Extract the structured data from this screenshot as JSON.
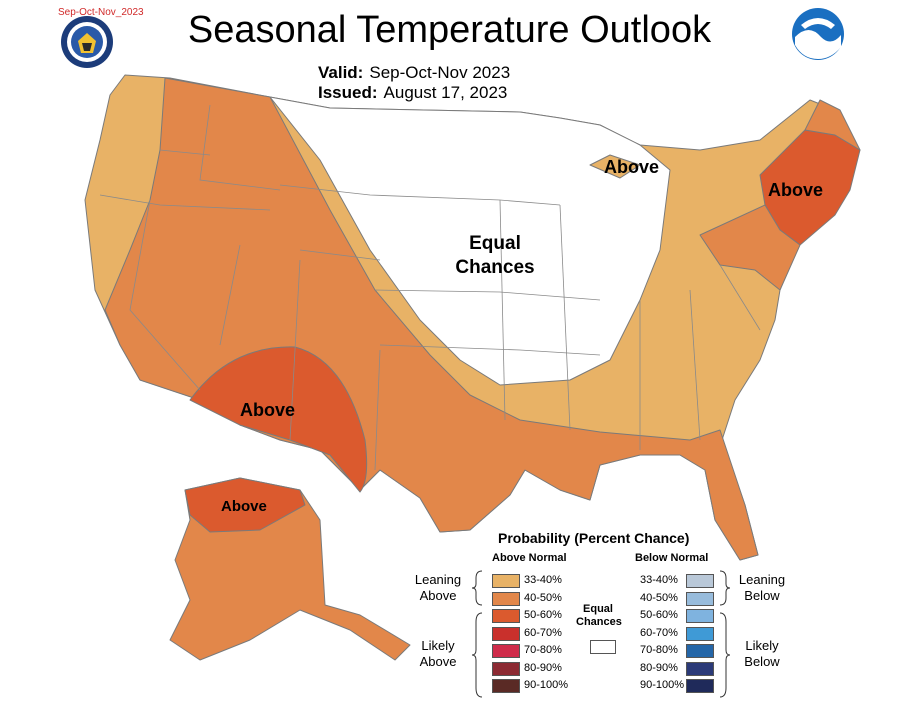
{
  "corner_tag": "Sep-Oct-Nov_2023",
  "title": "Seasonal Temperature Outlook",
  "valid_label": "Valid:",
  "valid_value": "Sep-Oct-Nov 2023",
  "issued_label": "Issued:",
  "issued_value": "August 17, 2023",
  "map_labels": {
    "equal_chances_1": "Equal",
    "equal_chances_2": "Chances",
    "south": "Above",
    "northeast": "Above",
    "great_lakes": "Above",
    "alaska": "Above"
  },
  "colors": {
    "above_33_40": "#e8b266",
    "above_40_50": "#e2874a",
    "above_50_60": "#db5a2e",
    "above_60_70": "#c9302c",
    "above_70_80": "#cf2b4a",
    "above_80_90": "#8c2a33",
    "above_90_100": "#5a2a25",
    "below_33_40": "#b9c8d8",
    "below_40_50": "#98bcdc",
    "below_50_60": "#7fb3df",
    "below_60_70": "#3f9ad6",
    "below_70_80": "#2466a8",
    "below_80_90": "#2b3a78",
    "below_90_100": "#1f2a5a",
    "equal_chances": "#ffffff",
    "border": "#777777"
  },
  "legend": {
    "title": "Probability (Percent Chance)",
    "above_header": "Above Normal",
    "below_header": "Below Normal",
    "leaning_above": [
      "Leaning",
      "Above"
    ],
    "likely_above": [
      "Likely",
      "Above"
    ],
    "leaning_below": [
      "Leaning",
      "Below"
    ],
    "likely_below": [
      "Likely",
      "Below"
    ],
    "equal_chances": [
      "Equal",
      "Chances"
    ],
    "above_ranges": [
      "33-40%",
      "40-50%",
      "50-60%",
      "60-70%",
      "70-80%",
      "80-90%",
      "90-100%"
    ],
    "below_ranges": [
      "33-40%",
      "40-50%",
      "50-60%",
      "60-70%",
      "70-80%",
      "80-90%",
      "90-100%"
    ]
  },
  "icons": {
    "seal": "department-seal-icon",
    "noaa": "noaa-logo-icon"
  }
}
